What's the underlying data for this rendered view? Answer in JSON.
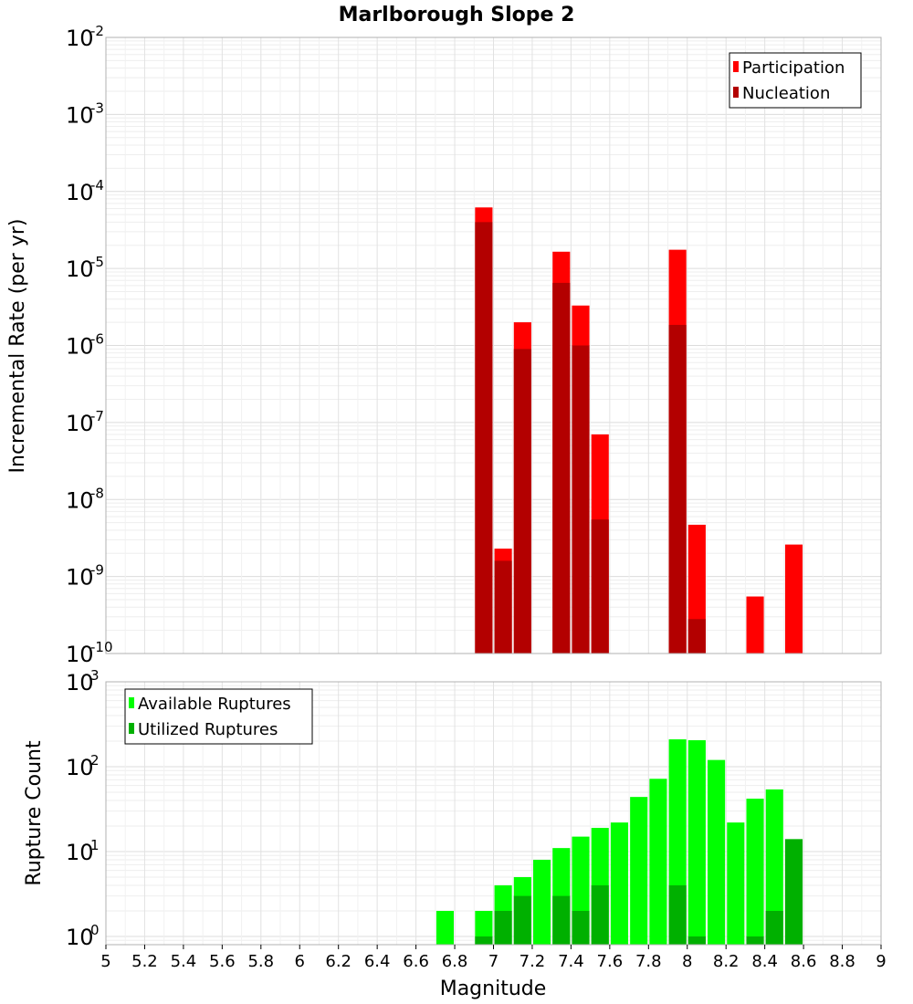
{
  "chart_data": [
    {
      "type": "bar",
      "panel": "top",
      "title": "Marlborough Slope 2",
      "xlabel": "",
      "ylabel": "Incremental Rate (per yr)",
      "yscale": "log",
      "ylim": [
        1e-10,
        0.01
      ],
      "xlim": [
        5,
        9
      ],
      "y_tick_exponents": [
        -2,
        -3,
        -4,
        -5,
        -6,
        -7,
        -8,
        -9,
        -10
      ],
      "grid": true,
      "legend_position": "top-right",
      "series": [
        {
          "name": "Participation",
          "color": "#ff0000",
          "points": [
            {
              "x": 6.95,
              "y": 6.2e-05
            },
            {
              "x": 7.05,
              "y": 2.3e-09
            },
            {
              "x": 7.15,
              "y": 2e-06
            },
            {
              "x": 7.35,
              "y": 1.65e-05
            },
            {
              "x": 7.45,
              "y": 3.3e-06
            },
            {
              "x": 7.55,
              "y": 7e-08
            },
            {
              "x": 7.95,
              "y": 1.75e-05
            },
            {
              "x": 8.05,
              "y": 4.7e-09
            },
            {
              "x": 8.35,
              "y": 5.5e-10
            },
            {
              "x": 8.55,
              "y": 2.6e-09
            }
          ]
        },
        {
          "name": "Nucleation",
          "color": "#b30000",
          "points": [
            {
              "x": 6.95,
              "y": 4e-05
            },
            {
              "x": 7.05,
              "y": 1.6e-09
            },
            {
              "x": 7.15,
              "y": 9e-07
            },
            {
              "x": 7.35,
              "y": 6.5e-06
            },
            {
              "x": 7.45,
              "y": 1e-06
            },
            {
              "x": 7.55,
              "y": 5.5e-09
            },
            {
              "x": 7.95,
              "y": 1.85e-06
            },
            {
              "x": 8.05,
              "y": 2.8e-10
            }
          ]
        }
      ]
    },
    {
      "type": "bar",
      "panel": "bottom",
      "title": "",
      "xlabel": "Magnitude",
      "ylabel": "Rupture Count",
      "yscale": "log",
      "ylim": [
        0.8,
        1000
      ],
      "xlim": [
        5,
        9
      ],
      "y_tick_exponents": [
        3,
        2,
        1,
        0
      ],
      "x_ticks": [
        "5",
        "5.2",
        "5.4",
        "5.6",
        "5.8",
        "6",
        "6.2",
        "6.4",
        "6.6",
        "6.8",
        "7",
        "7.2",
        "7.4",
        "7.6",
        "7.8",
        "8",
        "8.2",
        "8.4",
        "8.6",
        "8.8",
        "9"
      ],
      "grid": true,
      "legend_position": "top-left",
      "series": [
        {
          "name": "Available Ruptures",
          "color": "#00ff00",
          "points": [
            {
              "x": 6.75,
              "y": 2
            },
            {
              "x": 6.95,
              "y": 2
            },
            {
              "x": 7.05,
              "y": 4
            },
            {
              "x": 7.15,
              "y": 5
            },
            {
              "x": 7.25,
              "y": 8
            },
            {
              "x": 7.35,
              "y": 11
            },
            {
              "x": 7.45,
              "y": 15
            },
            {
              "x": 7.55,
              "y": 19
            },
            {
              "x": 7.65,
              "y": 22
            },
            {
              "x": 7.75,
              "y": 44
            },
            {
              "x": 7.85,
              "y": 72
            },
            {
              "x": 7.95,
              "y": 210
            },
            {
              "x": 8.05,
              "y": 205
            },
            {
              "x": 8.15,
              "y": 120
            },
            {
              "x": 8.25,
              "y": 22
            },
            {
              "x": 8.35,
              "y": 42
            },
            {
              "x": 8.45,
              "y": 54
            },
            {
              "x": 8.55,
              "y": 14
            }
          ]
        },
        {
          "name": "Utilized Ruptures",
          "color": "#00b000",
          "points": [
            {
              "x": 6.95,
              "y": 1
            },
            {
              "x": 7.05,
              "y": 2
            },
            {
              "x": 7.15,
              "y": 3
            },
            {
              "x": 7.35,
              "y": 3
            },
            {
              "x": 7.45,
              "y": 2
            },
            {
              "x": 7.55,
              "y": 4
            },
            {
              "x": 7.95,
              "y": 4
            },
            {
              "x": 8.05,
              "y": 1
            },
            {
              "x": 8.35,
              "y": 1
            },
            {
              "x": 8.45,
              "y": 2
            },
            {
              "x": 8.55,
              "y": 14
            }
          ]
        }
      ]
    }
  ]
}
